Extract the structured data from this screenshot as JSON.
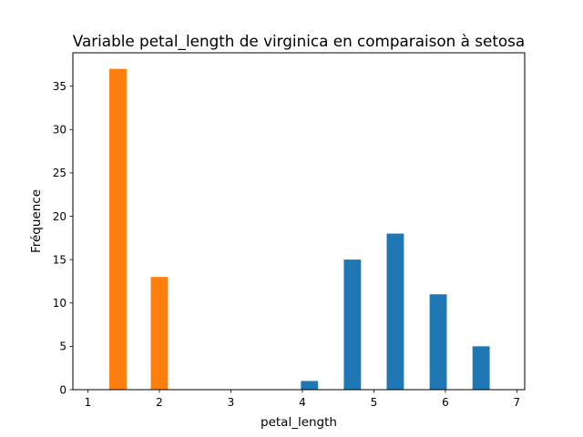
{
  "chart_data": {
    "type": "bar",
    "title": "Variable petal_length de virginica en comparaison à setosa",
    "xlabel": "petal_length",
    "ylabel": "Fréquence",
    "xlim": [
      0.79,
      7.11
    ],
    "ylim": [
      0,
      38.85
    ],
    "xticks": [
      1,
      2,
      3,
      4,
      5,
      6,
      7
    ],
    "yticks": [
      0,
      5,
      10,
      15,
      20,
      25,
      30,
      35
    ],
    "grid": false,
    "legend": "none",
    "bar_width": 0.24,
    "series": [
      {
        "color": "#1f77b4",
        "bars": [
          {
            "x": 4.1,
            "value": 1
          },
          {
            "x": 4.7,
            "value": 15
          },
          {
            "x": 5.3,
            "value": 18
          },
          {
            "x": 5.9,
            "value": 11
          },
          {
            "x": 6.5,
            "value": 5
          }
        ]
      },
      {
        "color": "#ff7f0e",
        "bars": [
          {
            "x": 1.42,
            "value": 37
          },
          {
            "x": 2.0,
            "value": 13
          }
        ]
      }
    ]
  }
}
